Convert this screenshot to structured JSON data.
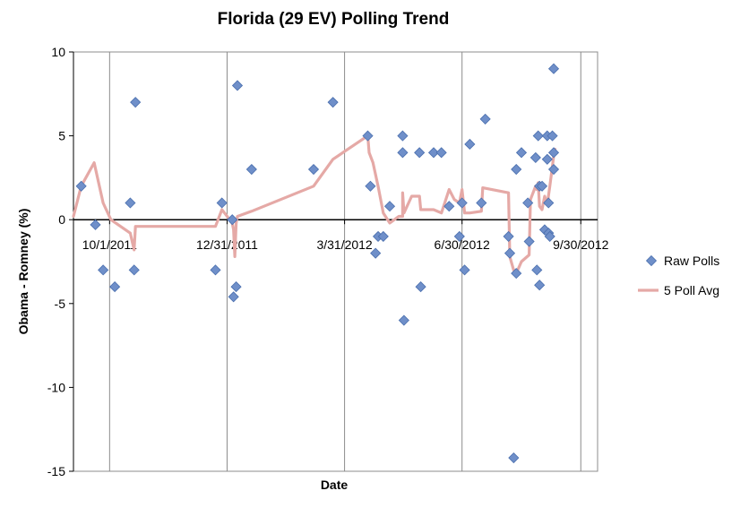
{
  "chart_data": {
    "type": "scatter",
    "title": "Florida (29 EV) Polling Trend",
    "xlabel": "Date",
    "ylabel": "Obama - Romney (%)",
    "ylim": [
      -15,
      10
    ],
    "xlim": [
      "2011-09-03",
      "2012-10-13"
    ],
    "xticks": [
      "10/1/2011",
      "12/31/2011",
      "3/31/2012",
      "6/30/2012",
      "9/30/2012"
    ],
    "yticks": [
      -15,
      -10,
      -5,
      0,
      5,
      10
    ],
    "vertical_gridlines": true,
    "horizontal_gridlines": false,
    "legend_position": "right",
    "colors": {
      "raw_polls": "#6f8fc9",
      "raw_polls_edge": "#4a6fae",
      "avg": "#e5a9a6"
    },
    "series": [
      {
        "name": "Raw Polls",
        "kind": "scatter",
        "points": [
          {
            "x": "2011-09-09",
            "y": 2
          },
          {
            "x": "2011-09-20",
            "y": -0.3
          },
          {
            "x": "2011-09-26",
            "y": -3
          },
          {
            "x": "2011-10-05",
            "y": -4
          },
          {
            "x": "2011-10-17",
            "y": 1
          },
          {
            "x": "2011-10-20",
            "y": -3
          },
          {
            "x": "2011-10-21",
            "y": 7
          },
          {
            "x": "2011-12-22",
            "y": -3
          },
          {
            "x": "2011-12-27",
            "y": 1.0
          },
          {
            "x": "2012-01-04",
            "y": 0
          },
          {
            "x": "2012-01-05",
            "y": -4.6
          },
          {
            "x": "2012-01-07",
            "y": -4
          },
          {
            "x": "2012-01-08",
            "y": 8
          },
          {
            "x": "2012-01-19",
            "y": 3
          },
          {
            "x": "2012-03-07",
            "y": 3
          },
          {
            "x": "2012-03-22",
            "y": 7
          },
          {
            "x": "2012-04-18",
            "y": 5
          },
          {
            "x": "2012-04-20",
            "y": 2
          },
          {
            "x": "2012-04-24",
            "y": -2
          },
          {
            "x": "2012-04-26",
            "y": -1
          },
          {
            "x": "2012-04-30",
            "y": -1
          },
          {
            "x": "2012-05-05",
            "y": 0.8
          },
          {
            "x": "2012-05-15",
            "y": 5
          },
          {
            "x": "2012-05-15",
            "y": 4
          },
          {
            "x": "2012-05-16",
            "y": -6
          },
          {
            "x": "2012-05-28",
            "y": 4
          },
          {
            "x": "2012-05-29",
            "y": -4
          },
          {
            "x": "2012-06-08",
            "y": 4
          },
          {
            "x": "2012-06-14",
            "y": 4
          },
          {
            "x": "2012-06-20",
            "y": 0.8
          },
          {
            "x": "2012-06-28",
            "y": -1
          },
          {
            "x": "2012-06-30",
            "y": 1
          },
          {
            "x": "2012-07-02",
            "y": -3
          },
          {
            "x": "2012-07-06",
            "y": 4.5
          },
          {
            "x": "2012-07-15",
            "y": 1
          },
          {
            "x": "2012-07-18",
            "y": 6
          },
          {
            "x": "2012-08-05",
            "y": -1
          },
          {
            "x": "2012-08-06",
            "y": -2
          },
          {
            "x": "2012-08-09",
            "y": -14.2
          },
          {
            "x": "2012-08-11",
            "y": 3
          },
          {
            "x": "2012-08-11",
            "y": -3.2
          },
          {
            "x": "2012-08-15",
            "y": 4
          },
          {
            "x": "2012-08-20",
            "y": 1
          },
          {
            "x": "2012-08-21",
            "y": -1.3
          },
          {
            "x": "2012-08-26",
            "y": 3.7
          },
          {
            "x": "2012-08-27",
            "y": -3
          },
          {
            "x": "2012-08-28",
            "y": 5
          },
          {
            "x": "2012-08-29",
            "y": 2
          },
          {
            "x": "2012-08-29",
            "y": -3.9
          },
          {
            "x": "2012-08-31",
            "y": 2
          },
          {
            "x": "2012-09-02",
            "y": -0.6
          },
          {
            "x": "2012-09-04",
            "y": 5
          },
          {
            "x": "2012-09-04",
            "y": 3.6
          },
          {
            "x": "2012-09-05",
            "y": -0.8
          },
          {
            "x": "2012-09-05",
            "y": 1
          },
          {
            "x": "2012-09-06",
            "y": -1
          },
          {
            "x": "2012-09-08",
            "y": 5
          },
          {
            "x": "2012-09-09",
            "y": 4
          },
          {
            "x": "2012-09-09",
            "y": 3
          },
          {
            "x": "2012-09-09",
            "y": 9
          }
        ]
      },
      {
        "name": "5 Poll Avg",
        "kind": "line",
        "points": [
          {
            "x": "2011-09-03",
            "y": 0.2
          },
          {
            "x": "2011-09-09",
            "y": 2
          },
          {
            "x": "2011-09-19",
            "y": 3.4
          },
          {
            "x": "2011-09-26",
            "y": 1
          },
          {
            "x": "2011-10-02",
            "y": 0
          },
          {
            "x": "2011-10-17",
            "y": -0.8
          },
          {
            "x": "2011-10-20",
            "y": -1.8
          },
          {
            "x": "2011-10-21",
            "y": -0.4
          },
          {
            "x": "2011-12-22",
            "y": -0.4
          },
          {
            "x": "2011-12-27",
            "y": 0.6
          },
          {
            "x": "2011-12-29",
            "y": 0.4
          },
          {
            "x": "2012-01-04",
            "y": -0.2
          },
          {
            "x": "2012-01-05",
            "y": -0.6
          },
          {
            "x": "2012-01-06",
            "y": -2.2
          },
          {
            "x": "2012-01-07",
            "y": -0.2
          },
          {
            "x": "2012-01-08",
            "y": 0.2
          },
          {
            "x": "2012-01-19",
            "y": 0.5
          },
          {
            "x": "2012-03-07",
            "y": 2
          },
          {
            "x": "2012-03-22",
            "y": 3.6
          },
          {
            "x": "2012-04-18",
            "y": 5
          },
          {
            "x": "2012-04-19",
            "y": 4
          },
          {
            "x": "2012-04-22",
            "y": 3.4
          },
          {
            "x": "2012-04-26",
            "y": 2
          },
          {
            "x": "2012-04-30",
            "y": 0.4
          },
          {
            "x": "2012-05-05",
            "y": -0.2
          },
          {
            "x": "2012-05-12",
            "y": 0.2
          },
          {
            "x": "2012-05-15",
            "y": 0.2
          },
          {
            "x": "2012-05-15",
            "y": 1.6
          },
          {
            "x": "2012-05-16",
            "y": 0.4
          },
          {
            "x": "2012-05-22",
            "y": 1.4
          },
          {
            "x": "2012-05-28",
            "y": 1.4
          },
          {
            "x": "2012-05-29",
            "y": 0.6
          },
          {
            "x": "2012-06-08",
            "y": 0.6
          },
          {
            "x": "2012-06-14",
            "y": 0.4
          },
          {
            "x": "2012-06-20",
            "y": 1.8
          },
          {
            "x": "2012-06-24",
            "y": 1.2
          },
          {
            "x": "2012-06-28",
            "y": 1
          },
          {
            "x": "2012-06-30",
            "y": 1.8
          },
          {
            "x": "2012-07-02",
            "y": 0.4
          },
          {
            "x": "2012-07-06",
            "y": 0.4
          },
          {
            "x": "2012-07-15",
            "y": 0.5
          },
          {
            "x": "2012-07-16",
            "y": 1.9
          },
          {
            "x": "2012-08-05",
            "y": 1.6
          },
          {
            "x": "2012-08-06",
            "y": -2.2
          },
          {
            "x": "2012-08-09",
            "y": -3
          },
          {
            "x": "2012-08-11",
            "y": -3.2
          },
          {
            "x": "2012-08-15",
            "y": -2.5
          },
          {
            "x": "2012-08-21",
            "y": -2.1
          },
          {
            "x": "2012-08-22",
            "y": 1.2
          },
          {
            "x": "2012-08-26",
            "y": 2
          },
          {
            "x": "2012-08-27",
            "y": 1.8
          },
          {
            "x": "2012-08-28",
            "y": 2.2
          },
          {
            "x": "2012-08-29",
            "y": 0.8
          },
          {
            "x": "2012-08-31",
            "y": 0.6
          },
          {
            "x": "2012-09-02",
            "y": 1.4
          },
          {
            "x": "2012-09-04",
            "y": 0.9
          },
          {
            "x": "2012-09-06",
            "y": 2.0
          },
          {
            "x": "2012-09-08",
            "y": 3.2
          },
          {
            "x": "2012-09-09",
            "y": 3.8
          },
          {
            "x": "2012-09-10",
            "y": 4.2
          }
        ]
      }
    ]
  }
}
